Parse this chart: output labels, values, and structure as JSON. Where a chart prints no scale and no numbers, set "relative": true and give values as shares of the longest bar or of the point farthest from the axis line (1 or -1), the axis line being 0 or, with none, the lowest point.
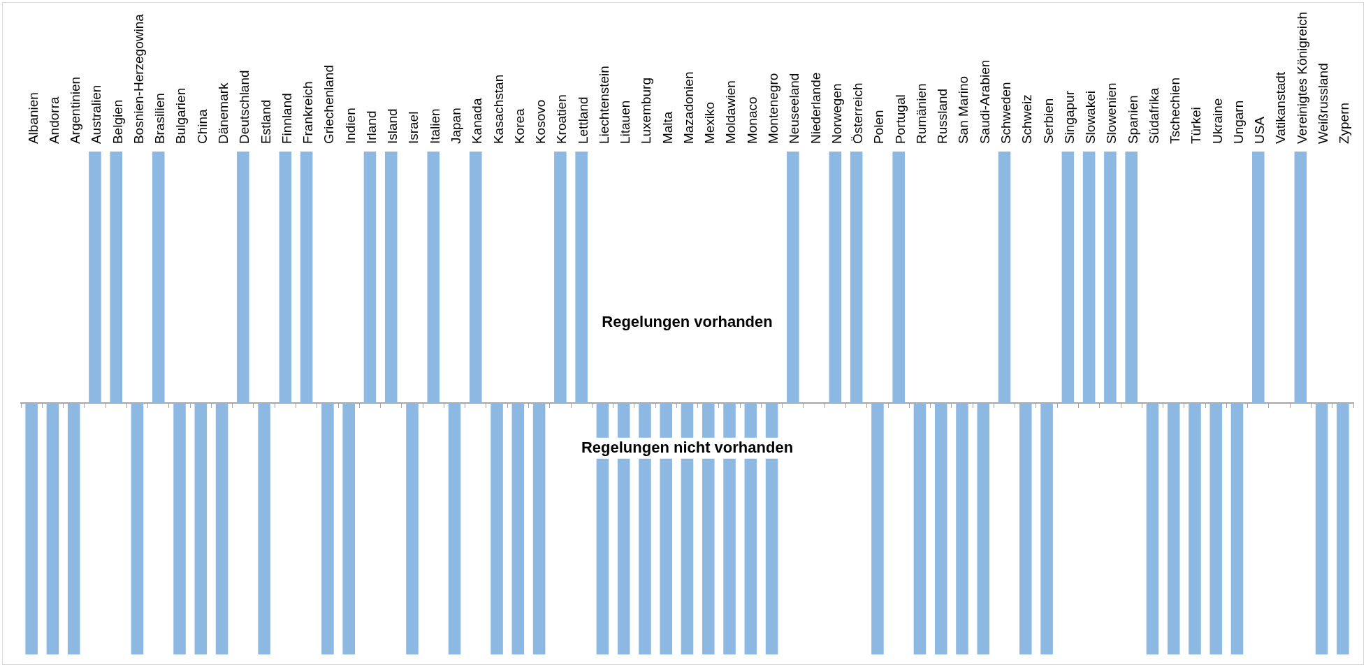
{
  "chart_data": {
    "type": "bar",
    "relative": true,
    "color": "#8db8e2",
    "categories": [
      "Albanien",
      "Andorra",
      "Argentinien",
      "Australien",
      "Belgien",
      "Bosnien-Herzegowina",
      "Brasilien",
      "Bulgarien",
      "China",
      "Dänemark",
      "Deutschland",
      "Estland",
      "Finnland",
      "Frankreich",
      "Griechenland",
      "Indien",
      "Irland",
      "Island",
      "Israel",
      "Italien",
      "Japan",
      "Kanada",
      "Kasachstan",
      "Korea",
      "Kosovo",
      "Kroatien",
      "Lettland",
      "Liechtenstein",
      "Litauen",
      "Luxemburg",
      "Malta",
      "Mazadonien",
      "Mexiko",
      "Moldawien",
      "Monaco",
      "Montenegro",
      "Neuseeland",
      "Niederlande",
      "Norwegen",
      "Österreich",
      "Polen",
      "Portugal",
      "Rumänien",
      "Russland",
      "San Marino",
      "Saudi-Arabien",
      "Schweden",
      "Schweiz",
      "Serbien",
      "Singapur",
      "Slowakei",
      "Slowenien",
      "Spanien",
      "Südafrika",
      "Tschechien",
      "Türkei",
      "Ukraine",
      "Ungarn",
      "USA",
      "Vatikanstadt",
      "Vereinigtes Königreich",
      "Weißrussland",
      "Zypern"
    ],
    "values": [
      -1,
      -1,
      -1,
      1,
      1,
      -1,
      1,
      -1,
      -1,
      -1,
      1,
      -1,
      1,
      1,
      -1,
      -1,
      1,
      1,
      -1,
      1,
      -1,
      1,
      -1,
      -1,
      -1,
      1,
      1,
      -1,
      -1,
      -1,
      -1,
      -1,
      -1,
      -1,
      -1,
      -1,
      1,
      null,
      1,
      1,
      -1,
      1,
      -1,
      -1,
      -1,
      -1,
      1,
      -1,
      -1,
      1,
      1,
      1,
      1,
      -1,
      -1,
      -1,
      -1,
      -1,
      1,
      null,
      1,
      -1,
      -1
    ],
    "annotations": [
      "Regelungen vorhanden",
      "Regelungen nicht vorhanden"
    ]
  }
}
